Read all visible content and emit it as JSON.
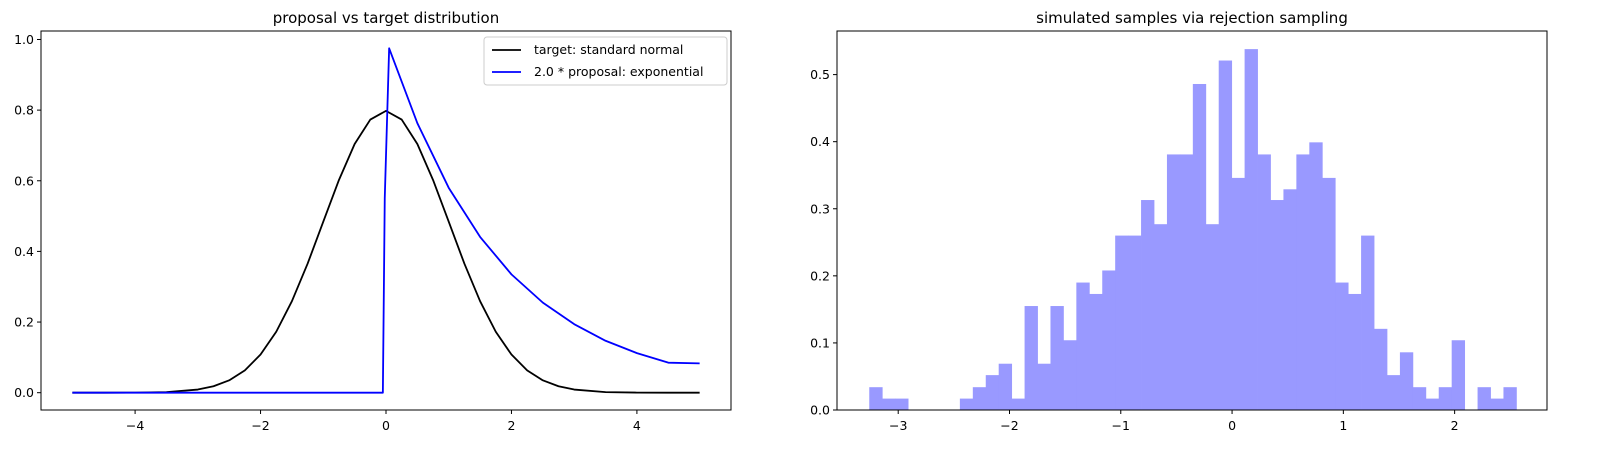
{
  "chart_data": [
    {
      "type": "line",
      "title": "proposal vs target distribution",
      "xlabel": "",
      "ylabel": "",
      "xlim": [
        -5.5,
        5.5
      ],
      "ylim": [
        -0.049,
        1.024
      ],
      "xticks": [
        -4,
        -2,
        0,
        2,
        4
      ],
      "yticks": [
        0.0,
        0.2,
        0.4,
        0.6,
        0.8,
        1.0
      ],
      "xtick_labels": [
        "−4",
        "−2",
        "0",
        "2",
        "4"
      ],
      "ytick_labels": [
        "0.0",
        "0.2",
        "0.4",
        "0.6",
        "0.8",
        "1.0"
      ],
      "grid": false,
      "legend_position": "top-right",
      "series": [
        {
          "name": "target: standard normal",
          "color": "#000000",
          "x": [
            -5.0,
            -4.5,
            -4.0,
            -3.5,
            -3.0,
            -2.75,
            -2.5,
            -2.25,
            -2.0,
            -1.75,
            -1.5,
            -1.25,
            -1.0,
            -0.75,
            -0.5,
            -0.25,
            0.0,
            0.25,
            0.5,
            0.75,
            1.0,
            1.25,
            1.5,
            1.75,
            2.0,
            2.25,
            2.5,
            2.75,
            3.0,
            3.5,
            4.0,
            4.5,
            5.0
          ],
          "y": [
            0.0,
            0.0,
            0.0003,
            0.0017,
            0.0089,
            0.0182,
            0.035,
            0.0633,
            0.108,
            0.1726,
            0.2591,
            0.3652,
            0.484,
            0.6022,
            0.7041,
            0.7733,
            0.7979,
            0.7733,
            0.7041,
            0.6022,
            0.484,
            0.3652,
            0.2591,
            0.1726,
            0.108,
            0.0633,
            0.035,
            0.0182,
            0.0089,
            0.0017,
            0.0003,
            0.0,
            0.0
          ]
        },
        {
          "name": "2.0 * proposal: exponential",
          "color": "#0000ff",
          "x": [
            -5.0,
            -0.05,
            -0.02,
            0.05,
            0.5,
            1.0,
            1.5,
            2.0,
            2.5,
            3.0,
            3.5,
            4.0,
            4.5,
            5.0
          ],
          "y": [
            0.0,
            0.0,
            0.55,
            0.975,
            0.763,
            0.58,
            0.441,
            0.335,
            0.255,
            0.194,
            0.147,
            0.112,
            0.085,
            0.083
          ]
        }
      ]
    },
    {
      "type": "bar",
      "title": "simulated samples via rejection sampling",
      "xlabel": "",
      "ylabel": "",
      "xlim": [
        -3.55,
        2.83
      ],
      "ylim": [
        0.0,
        0.565
      ],
      "xticks": [
        -3,
        -2,
        -1,
        0,
        1,
        2
      ],
      "yticks": [
        0.0,
        0.1,
        0.2,
        0.3,
        0.4,
        0.5
      ],
      "xtick_labels": [
        "−3",
        "−2",
        "−1",
        "0",
        "1",
        "2"
      ],
      "ytick_labels": [
        "0.0",
        "0.1",
        "0.2",
        "0.3",
        "0.4",
        "0.5"
      ],
      "grid": false,
      "bar_color": "#9999ff",
      "bin_start": -3.26,
      "bin_width": 0.1163,
      "values": [
        0.034,
        0.017,
        0.017,
        0.0,
        0.0,
        0.0,
        0.0,
        0.017,
        0.034,
        0.052,
        0.069,
        0.017,
        0.155,
        0.069,
        0.155,
        0.104,
        0.19,
        0.173,
        0.208,
        0.26,
        0.26,
        0.313,
        0.277,
        0.381,
        0.381,
        0.486,
        0.277,
        0.521,
        0.346,
        0.538,
        0.381,
        0.313,
        0.329,
        0.381,
        0.399,
        0.346,
        0.19,
        0.173,
        0.26,
        0.121,
        0.052,
        0.086,
        0.034,
        0.017,
        0.034,
        0.104,
        0.0,
        0.034,
        0.017,
        0.034
      ]
    }
  ]
}
